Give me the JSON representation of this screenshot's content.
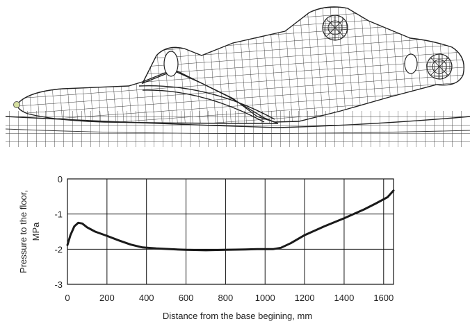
{
  "chart_data": {
    "type": "line",
    "xlabel": "Distance from the base begining,  mm",
    "ylabel": "Pressure to the floor,\nMPa",
    "ylabel_lines": [
      "Pressure to the floor,",
      "MPa"
    ],
    "xlim": [
      0,
      1650
    ],
    "ylim": [
      -3,
      0
    ],
    "x_ticks": [
      0,
      200,
      400,
      600,
      800,
      1000,
      1200,
      1400,
      1600
    ],
    "y_ticks": [
      0,
      -1,
      -2,
      -3
    ],
    "x_gridlines": [
      0,
      200,
      400,
      600,
      800,
      1000,
      1200,
      1400,
      1600
    ],
    "y_gridlines": [
      0,
      -1,
      -2,
      -3
    ],
    "grid": true,
    "series": [
      {
        "x": [
          0,
          15,
          35,
          55,
          75,
          100,
          140,
          200,
          260,
          320,
          380,
          450,
          520,
          600,
          700,
          800,
          900,
          960,
          1000,
          1040,
          1080,
          1130,
          1200,
          1300,
          1400,
          1500,
          1560,
          1620,
          1650
        ],
        "y": [
          -1.88,
          -1.6,
          -1.35,
          -1.25,
          -1.27,
          -1.38,
          -1.5,
          -1.62,
          -1.75,
          -1.87,
          -1.95,
          -1.98,
          -2.0,
          -2.02,
          -2.03,
          -2.02,
          -2.01,
          -2.0,
          -2.0,
          -2.0,
          -1.96,
          -1.83,
          -1.6,
          -1.35,
          -1.12,
          -0.87,
          -0.7,
          -0.52,
          -0.33
        ]
      }
    ]
  },
  "illustration": {
    "subject": "finite-element-mesh",
    "line_color": "#3a3a3a",
    "marker_color": "#d6e0a0"
  }
}
